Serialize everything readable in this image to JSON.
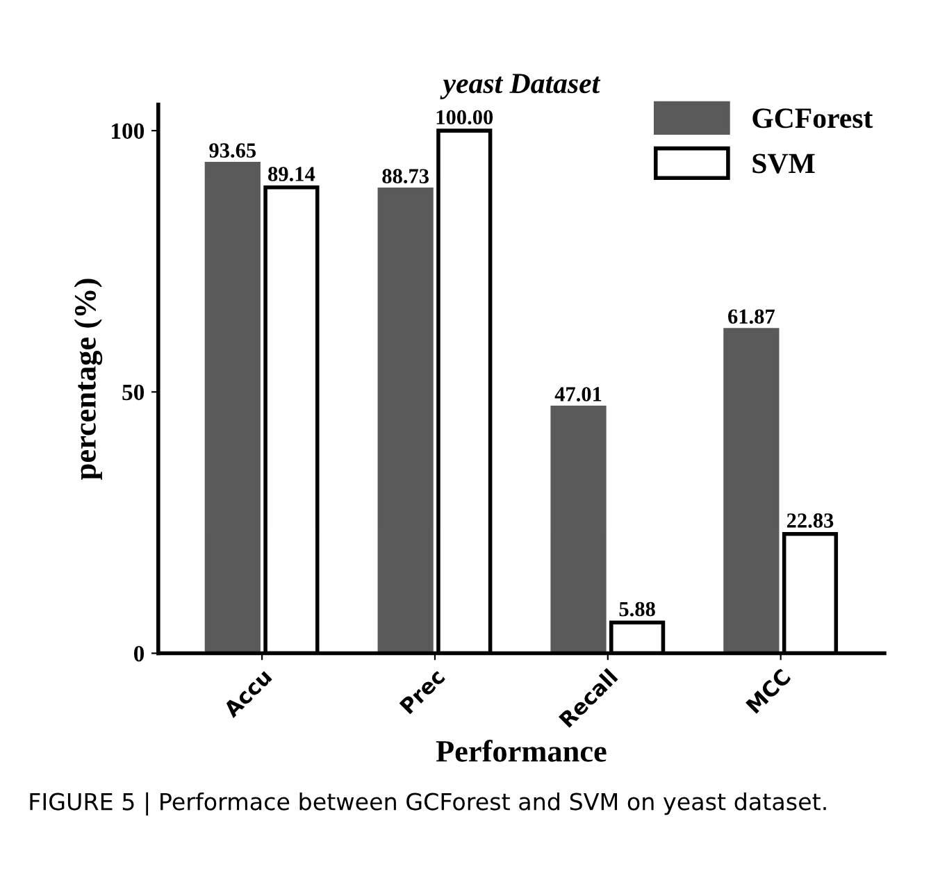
{
  "chart_data": {
    "type": "bar",
    "title": "yeast Dataset",
    "xlabel": "Performance",
    "ylabel": "percentage (%)",
    "categories": [
      "Accu",
      "Prec",
      "Recall",
      "MCC"
    ],
    "series": [
      {
        "name": "GCForest",
        "color": "#5a5a5a",
        "values": [
          93.65,
          88.73,
          47.01,
          61.87
        ],
        "value_labels": [
          "93.65",
          "88.73",
          "47.01",
          "61.87"
        ]
      },
      {
        "name": "SVM",
        "color": "#ffffff",
        "values": [
          89.14,
          100.0,
          5.88,
          22.83
        ],
        "value_labels": [
          "89.14",
          "100.00",
          "5.88",
          "22.83"
        ]
      }
    ],
    "ylim": [
      0,
      105
    ],
    "yticks": [
      0,
      50,
      100
    ],
    "legend": "top right",
    "grid": false,
    "annotations": [
      "FIGURE 5 | Performace between GCForest and SVM on yeast dataset."
    ]
  }
}
